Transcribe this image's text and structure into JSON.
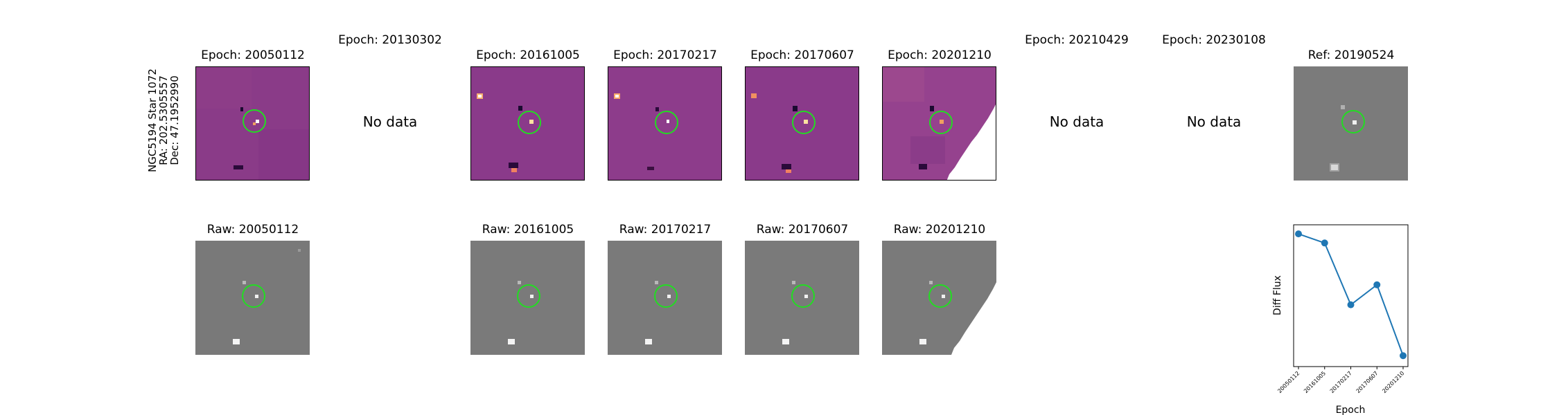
{
  "star": {
    "name": "NGC5194 Star 1072",
    "ra": "RA: 202.5305557",
    "dec": "Dec: 47.1952990"
  },
  "diff_titles": {
    "e1": "Epoch: 20050112",
    "e2": "Epoch: 20130302",
    "e3": "Epoch: 20161005",
    "e4": "Epoch: 20170217",
    "e5": "Epoch: 20170607",
    "e6": "Epoch: 20201210",
    "e7": "Epoch: 20210429",
    "e8": "Epoch: 20230108",
    "ref": "Ref: 20190524"
  },
  "raw_titles": {
    "r1": "Raw: 20050112",
    "r3": "Raw: 20161005",
    "r4": "Raw: 20170217",
    "r5": "Raw: 20170607",
    "r6": "Raw: 20201210"
  },
  "no_data_label": "No data",
  "colors": {
    "diff_bg": "#8a3a8a",
    "raw_bg": "#7a7a7a",
    "circle": "#22dd22",
    "line": "#1f77b4"
  },
  "chart_data": {
    "type": "line",
    "xlabel": "Epoch",
    "ylabel": "Diff Flux",
    "categories": [
      "20050112",
      "20161005",
      "20170217",
      "20170607",
      "20201210"
    ],
    "series": [
      {
        "values": [
          0.95,
          0.9,
          0.56,
          0.67,
          0.28
        ]
      }
    ],
    "ylim": [
      0.22,
      1.0
    ],
    "grid": false
  }
}
